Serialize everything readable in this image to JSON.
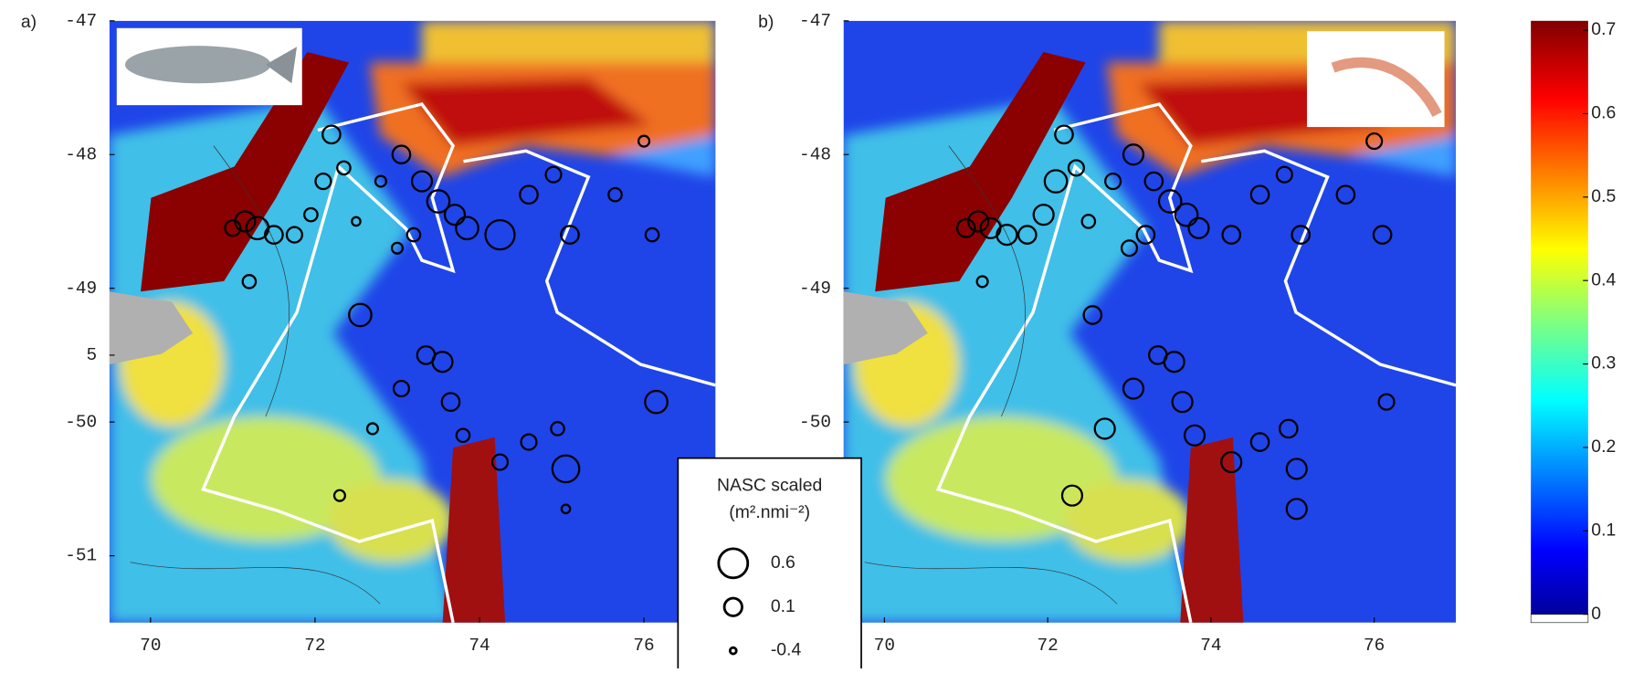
{
  "panels": [
    {
      "label": "a)",
      "xlim": [
        69.5,
        76.87
      ],
      "ylim": [
        -51.5,
        -47
      ],
      "xticks": [
        70,
        72,
        74,
        76
      ],
      "yticks": [
        -47,
        -48,
        -49,
        {
          "value": -49.5,
          "label": "5"
        },
        -50,
        -51
      ],
      "points": {
        "lon": [
          71.0,
          71.15,
          71.3,
          71.5,
          71.75,
          71.95,
          72.1,
          72.2,
          72.35,
          72.5,
          72.8,
          73.05,
          73.3,
          73.5,
          73.7,
          73.85,
          73.2,
          73.0,
          74.25,
          74.6,
          74.9,
          75.1,
          75.65,
          76.0,
          76.1,
          71.2,
          72.55,
          72.3,
          72.7,
          73.05,
          73.35,
          73.55,
          73.65,
          73.8,
          74.25,
          74.6,
          74.95,
          75.05,
          76.15,
          75.05
        ],
        "lat": [
          -48.55,
          -48.5,
          -48.55,
          -48.6,
          -48.6,
          -48.45,
          -48.2,
          -47.85,
          -48.1,
          -48.5,
          -48.2,
          -48.0,
          -48.2,
          -48.35,
          -48.45,
          -48.55,
          -48.6,
          -48.7,
          -48.6,
          -48.3,
          -48.15,
          -48.6,
          -48.3,
          -47.9,
          -48.6,
          -48.95,
          -49.2,
          -50.55,
          -50.05,
          -49.75,
          -49.5,
          -49.55,
          -49.85,
          -50.1,
          -50.3,
          -50.15,
          -50.05,
          -50.35,
          -49.85,
          -50.65
        ],
        "nasc": [
          0.0,
          0.2,
          0.3,
          0.1,
          0.0,
          -0.1,
          0.0,
          0.1,
          -0.1,
          -0.3,
          -0.2,
          0.1,
          0.2,
          0.3,
          0.2,
          0.3,
          -0.1,
          -0.2,
          0.6,
          0.1,
          0.0,
          0.1,
          -0.1,
          -0.2,
          -0.1,
          -0.1,
          0.3,
          -0.2,
          -0.2,
          0.0,
          0.1,
          0.2,
          0.1,
          -0.1,
          0.0,
          0.0,
          -0.1,
          0.5,
          0.3,
          -0.3
        ]
      }
    },
    {
      "label": "b)",
      "xlim": [
        69.5,
        77.0
      ],
      "ylim": [
        -51.5,
        -47
      ],
      "xticks": [
        70,
        72,
        74,
        76
      ],
      "yticks": [
        -47,
        -48,
        -49,
        -50
      ],
      "points": {
        "lon": [
          71.0,
          71.15,
          71.3,
          71.5,
          71.75,
          71.95,
          72.1,
          72.2,
          72.35,
          72.5,
          72.8,
          73.05,
          73.3,
          73.5,
          73.7,
          73.85,
          73.2,
          73.0,
          74.25,
          74.6,
          74.9,
          75.1,
          75.65,
          76.0,
          76.1,
          71.2,
          72.55,
          72.3,
          72.7,
          73.05,
          73.35,
          73.55,
          73.65,
          73.8,
          74.25,
          74.6,
          74.95,
          75.05,
          76.15,
          75.05
        ],
        "lat": [
          -48.55,
          -48.5,
          -48.55,
          -48.6,
          -48.6,
          -48.45,
          -48.2,
          -47.85,
          -48.1,
          -48.5,
          -48.2,
          -48.0,
          -48.2,
          -48.35,
          -48.45,
          -48.55,
          -48.6,
          -48.7,
          -48.6,
          -48.3,
          -48.15,
          -48.6,
          -48.3,
          -47.9,
          -48.6,
          -48.95,
          -49.2,
          -50.55,
          -50.05,
          -49.75,
          -49.5,
          -49.55,
          -49.85,
          -50.1,
          -50.3,
          -50.15,
          -50.05,
          -50.35,
          -49.85,
          -50.65
        ],
        "nasc": [
          0.1,
          0.2,
          0.2,
          0.2,
          0.1,
          0.2,
          0.3,
          0.1,
          0.0,
          -0.1,
          0.0,
          0.2,
          0.1,
          0.3,
          0.3,
          0.2,
          0.1,
          0.0,
          0.1,
          0.1,
          0.0,
          0.1,
          0.1,
          0.0,
          0.1,
          -0.2,
          0.1,
          0.2,
          0.2,
          0.2,
          0.1,
          0.2,
          0.2,
          0.2,
          0.2,
          0.1,
          0.1,
          0.2,
          0.0,
          0.2
        ]
      }
    }
  ],
  "legend": {
    "title": "NASC scaled",
    "unit": "(m².nmi⁻²)",
    "sizes": [
      0.6,
      0.1,
      -0.4
    ]
  },
  "colorbar": {
    "lim": [
      0,
      0.7
    ],
    "ticks": [
      0.7,
      0.6,
      0.5,
      0.4,
      0.3,
      0.2,
      0.1,
      0
    ]
  }
}
